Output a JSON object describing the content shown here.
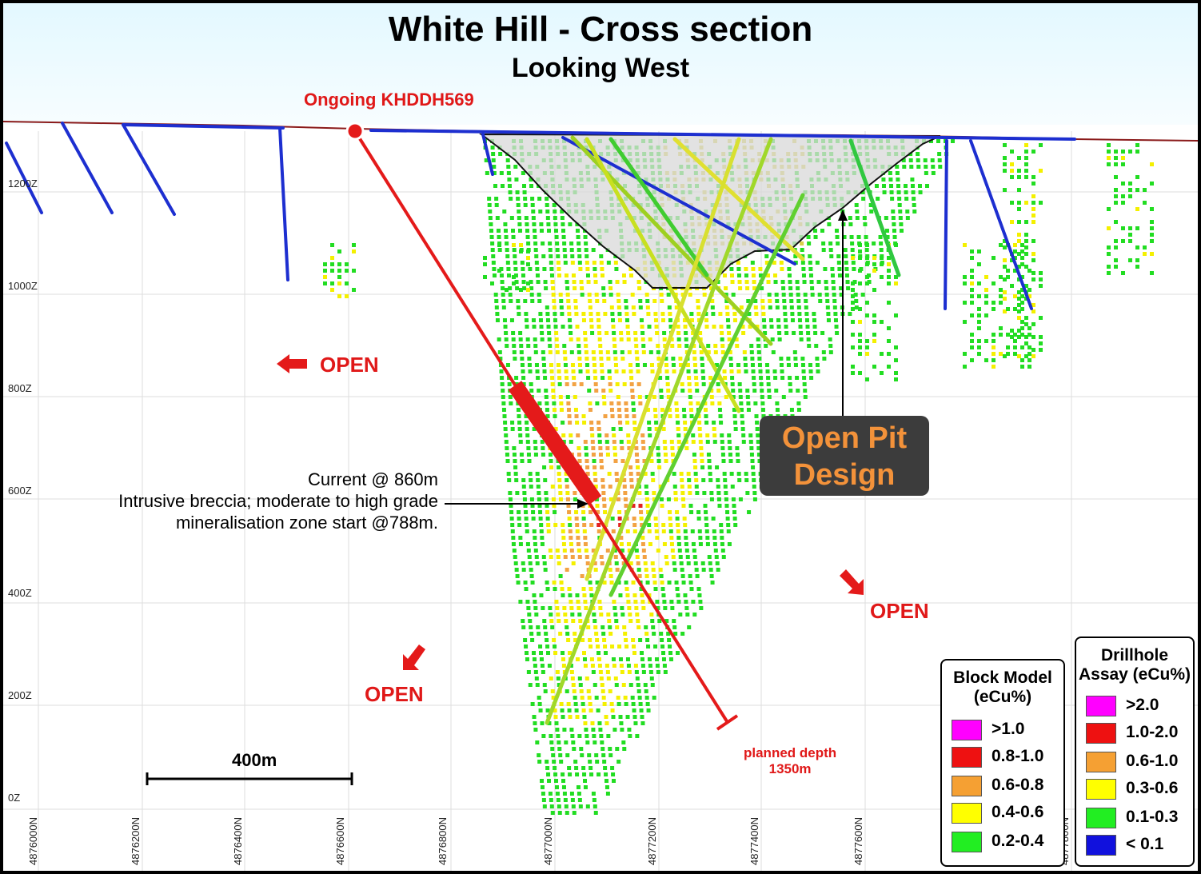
{
  "title": "White Hill  - Cross section",
  "subtitle": "Looking West",
  "drillhole_label": "Ongoing KHDDH569",
  "planned_depth": [
    "planned depth",
    "1350m"
  ],
  "callout": [
    "Current @ 860m",
    "Intrusive breccia; moderate to high grade",
    "mineralisation zone start @788m."
  ],
  "pit_design": [
    "Open Pit",
    "Design"
  ],
  "open_labels": [
    "OPEN",
    "OPEN",
    "OPEN"
  ],
  "scale_bar": "400m",
  "elevation_labels": [
    "1200Z",
    "1000Z",
    "800Z",
    "600Z",
    "400Z",
    "200Z",
    "0Z"
  ],
  "northing_labels": [
    "4876000N",
    "4876200N",
    "4876400N",
    "4876600N",
    "4876800N",
    "4877000N",
    "4877200N",
    "4877400N",
    "4877600N",
    "4877800N"
  ],
  "block_legend": {
    "title": [
      "Block Model",
      "(eCu%)"
    ],
    "items": [
      {
        "label": ">1.0",
        "color": "#ff00ff"
      },
      {
        "label": "0.8-1.0",
        "color": "#ee1111"
      },
      {
        "label": "0.6-0.8",
        "color": "#f5a033"
      },
      {
        "label": "0.4-0.6",
        "color": "#ffff00"
      },
      {
        "label": "0.2-0.4",
        "color": "#22ee22"
      }
    ]
  },
  "assay_legend": {
    "title": [
      "Drillhole",
      "Assay (eCu%)"
    ],
    "items": [
      {
        "label": ">2.0",
        "color": "#ff00ff"
      },
      {
        "label": "1.0-2.0",
        "color": "#ee1111"
      },
      {
        "label": "0.6-1.0",
        "color": "#f5a033"
      },
      {
        "label": "0.3-0.6",
        "color": "#ffff00"
      },
      {
        "label": "0.1-0.3",
        "color": "#22ee22"
      },
      {
        "label": "< 0.1",
        "color": "#1111dd"
      }
    ]
  }
}
